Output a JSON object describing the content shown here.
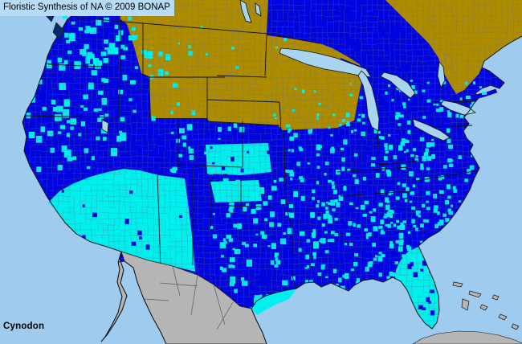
{
  "header": {
    "title": "Floristic Synthesis of NA © 2009 BONAP"
  },
  "footer": {
    "taxon_name": "Cynodon"
  },
  "map": {
    "palette": {
      "ocean": "#9FCBEE",
      "title_box_bg": "#B9DCF6",
      "state_present_blue": "#0004DE",
      "county_present_cyan": "#00EFEF",
      "state_absent_olive": "#AD8C00",
      "outside_coverage_gray": "#B5B5B5",
      "lake_blue": "#A8D4F0",
      "county_line": "#66707E",
      "state_line": "#101418",
      "mexico_state_line": "#5A5A5A",
      "island_dark": "#0B2A6B"
    }
  }
}
